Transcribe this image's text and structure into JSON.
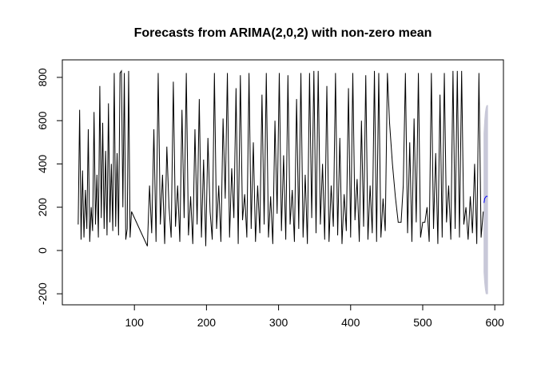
{
  "chart_data": {
    "type": "line",
    "title": "Forecasts from ARIMA(2,0,2) with non-zero mean",
    "xlim": [
      0,
      612
    ],
    "ylim": [
      -251,
      881
    ],
    "xticks": [
      100,
      200,
      300,
      400,
      500,
      600
    ],
    "yticks": [
      -200,
      0,
      200,
      400,
      600,
      800
    ],
    "grid": false,
    "series": [
      {
        "color": "#000000",
        "x": [
          22,
          24,
          26,
          28,
          30,
          32,
          34,
          36,
          38,
          40,
          42,
          44,
          46,
          48,
          50,
          52,
          54,
          56,
          58,
          60,
          62,
          64,
          66,
          68,
          70,
          72,
          74,
          76,
          78,
          80,
          82,
          84,
          86,
          88,
          90,
          92,
          94,
          96,
          118,
          121,
          124,
          127,
          130,
          133,
          136,
          139,
          142,
          145,
          148,
          151,
          154,
          157,
          160,
          163,
          166,
          169,
          172,
          175,
          178,
          181,
          184,
          187,
          190,
          193,
          196,
          199,
          202,
          205,
          208,
          211,
          214,
          217,
          220,
          223,
          226,
          229,
          232,
          235,
          238,
          241,
          244,
          247,
          250,
          253,
          256,
          259,
          262,
          265,
          268,
          271,
          274,
          277,
          280,
          283,
          286,
          289,
          292,
          295,
          298,
          301,
          304,
          307,
          310,
          313,
          316,
          319,
          322,
          325,
          328,
          331,
          334,
          337,
          340,
          343,
          346,
          349,
          352,
          355,
          358,
          361,
          364,
          367,
          370,
          373,
          376,
          379,
          382,
          385,
          388,
          391,
          394,
          397,
          400,
          403,
          406,
          409,
          412,
          415,
          418,
          421,
          424,
          427,
          430,
          433,
          436,
          439,
          442,
          445,
          448,
          451,
          454,
          458,
          462,
          466,
          470,
          473,
          476,
          479,
          482,
          485,
          488,
          491,
          494,
          497,
          500,
          503,
          506,
          509,
          512,
          515,
          518,
          521,
          524,
          527,
          530,
          533,
          536,
          539,
          542,
          545,
          548,
          551,
          554,
          557,
          560,
          563,
          566,
          569,
          572,
          575,
          578,
          581,
          584
        ],
        "values": [
          120,
          650,
          50,
          370,
          60,
          280,
          100,
          560,
          40,
          200,
          90,
          640,
          120,
          350,
          60,
          760,
          150,
          590,
          100,
          460,
          70,
          680,
          130,
          400,
          90,
          820,
          110,
          450,
          70,
          820,
          830,
          200,
          820,
          50,
          100,
          830,
          60,
          180,
          20,
          300,
          80,
          560,
          40,
          820,
          120,
          350,
          30,
          480,
          200,
          60,
          780,
          110,
          300,
          40,
          650,
          150,
          820,
          70,
          250,
          30,
          560,
          120,
          700,
          60,
          420,
          20,
          520,
          180,
          50,
          820,
          100,
          300,
          40,
          610,
          240,
          820,
          60,
          380,
          150,
          750,
          30,
          810,
          140,
          260,
          60,
          820,
          100,
          500,
          40,
          300,
          80,
          720,
          120,
          820,
          60,
          250,
          30,
          600,
          170,
          820,
          90,
          440,
          50,
          810,
          120,
          280,
          40,
          700,
          100,
          820,
          60,
          350,
          30,
          820,
          150,
          830,
          80,
          830,
          120,
          400,
          50,
          760,
          40,
          300,
          110,
          820,
          70,
          520,
          30,
          260,
          90,
          750,
          60,
          820,
          140,
          330,
          40,
          600,
          110,
          810,
          50,
          300,
          80,
          830,
          40,
          820,
          60,
          240,
          90,
          820,
          590,
          400,
          250,
          130,
          130,
          300,
          820,
          80,
          500,
          40,
          610,
          130,
          820,
          60,
          130,
          130,
          200,
          40,
          820,
          100,
          450,
          30,
          720,
          60,
          820,
          130,
          300,
          50,
          830,
          100,
          830,
          60,
          830,
          120,
          200,
          50,
          250,
          80,
          400,
          30,
          820,
          60,
          180
        ]
      }
    ],
    "forecast": {
      "color": "#0000ff",
      "band_color": "#c8c8d8",
      "x": [
        585,
        586,
        587,
        588,
        589,
        590
      ],
      "values": [
        220,
        240,
        245,
        250,
        250,
        250
      ],
      "lower": [
        -100,
        -150,
        -180,
        -200,
        -200,
        -200
      ],
      "upper": [
        540,
        600,
        640,
        660,
        670,
        670
      ]
    }
  }
}
